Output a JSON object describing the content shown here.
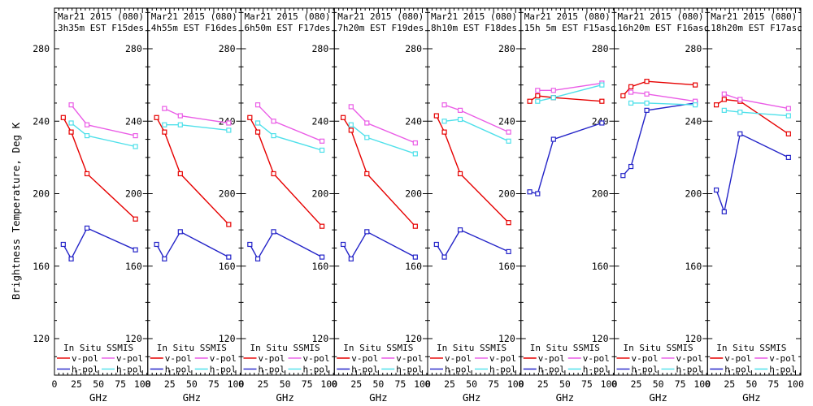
{
  "figure": {
    "y_axis_label": "Brightness Temperature, Deg K",
    "x_axis_label": "GHz",
    "y_ticks": [
      120,
      160,
      200,
      240,
      280
    ],
    "x_ticks": [
      0,
      25,
      50,
      75,
      100
    ],
    "ylim": [
      100,
      302
    ],
    "xlim": [
      0,
      106
    ],
    "colors": {
      "in_situ_v": "#e60000",
      "in_situ_h": "#2424c8",
      "ssmis_v": "#ea5ce6",
      "ssmis_h": "#4fe0ea",
      "axis": "#000000",
      "background": "#ffffff"
    },
    "legend": {
      "col1_header": "In Situ",
      "col2_header": "SSMIS",
      "vpol_label": "v-pol",
      "hpol_label": "h-pol"
    }
  },
  "chart_data": [
    {
      "type": "line",
      "title": [
        "Mar21 2015 (080)",
        "3h35m EST F15des"
      ],
      "xlabel": "GHz",
      "series": [
        {
          "name": "In Situ v-pol",
          "color_key": "in_situ_v",
          "x": [
            10,
            19,
            37,
            92
          ],
          "values": [
            242,
            234,
            211,
            186
          ]
        },
        {
          "name": "In Situ h-pol",
          "color_key": "in_situ_h",
          "x": [
            10,
            19,
            37,
            92
          ],
          "values": [
            172,
            164,
            181,
            169
          ]
        },
        {
          "name": "SSMIS v-pol",
          "color_key": "ssmis_v",
          "x": [
            19,
            37,
            92
          ],
          "values": [
            249,
            238,
            232
          ]
        },
        {
          "name": "SSMIS h-pol",
          "color_key": "ssmis_h",
          "x": [
            19,
            37,
            92
          ],
          "values": [
            239,
            232,
            226
          ]
        }
      ]
    },
    {
      "type": "line",
      "title": [
        "Mar21 2015 (080)",
        "4h55m EST F16des"
      ],
      "xlabel": "GHz",
      "series": [
        {
          "name": "In Situ v-pol",
          "color_key": "in_situ_v",
          "x": [
            10,
            19,
            37,
            92
          ],
          "values": [
            242,
            234,
            211,
            183
          ]
        },
        {
          "name": "In Situ h-pol",
          "color_key": "in_situ_h",
          "x": [
            10,
            19,
            37,
            92
          ],
          "values": [
            172,
            164,
            179,
            165
          ]
        },
        {
          "name": "SSMIS v-pol",
          "color_key": "ssmis_v",
          "x": [
            19,
            37,
            92
          ],
          "values": [
            247,
            243,
            239
          ]
        },
        {
          "name": "SSMIS h-pol",
          "color_key": "ssmis_h",
          "x": [
            19,
            37,
            92
          ],
          "values": [
            238,
            238,
            235
          ]
        }
      ]
    },
    {
      "type": "line",
      "title": [
        "Mar21 2015 (080)",
        "6h50m EST F17des"
      ],
      "xlabel": "GHz",
      "series": [
        {
          "name": "In Situ v-pol",
          "color_key": "in_situ_v",
          "x": [
            10,
            19,
            37,
            92
          ],
          "values": [
            242,
            234,
            211,
            182
          ]
        },
        {
          "name": "In Situ h-pol",
          "color_key": "in_situ_h",
          "x": [
            10,
            19,
            37,
            92
          ],
          "values": [
            172,
            164,
            179,
            165
          ]
        },
        {
          "name": "SSMIS v-pol",
          "color_key": "ssmis_v",
          "x": [
            19,
            37,
            92
          ],
          "values": [
            249,
            240,
            229
          ]
        },
        {
          "name": "SSMIS h-pol",
          "color_key": "ssmis_h",
          "x": [
            19,
            37,
            92
          ],
          "values": [
            239,
            232,
            224
          ]
        }
      ]
    },
    {
      "type": "line",
      "title": [
        "Mar21 2015 (080)",
        "7h20m EST F19des"
      ],
      "xlabel": "GHz",
      "series": [
        {
          "name": "In Situ v-pol",
          "color_key": "in_situ_v",
          "x": [
            10,
            19,
            37,
            92
          ],
          "values": [
            242,
            235,
            211,
            182
          ]
        },
        {
          "name": "In Situ h-pol",
          "color_key": "in_situ_h",
          "x": [
            10,
            19,
            37,
            92
          ],
          "values": [
            172,
            164,
            179,
            165
          ]
        },
        {
          "name": "SSMIS v-pol",
          "color_key": "ssmis_v",
          "x": [
            19,
            37,
            92
          ],
          "values": [
            248,
            239,
            228
          ]
        },
        {
          "name": "SSMIS h-pol",
          "color_key": "ssmis_h",
          "x": [
            19,
            37,
            92
          ],
          "values": [
            238,
            231,
            222
          ]
        }
      ]
    },
    {
      "type": "line",
      "title": [
        "Mar21 2015 (080)",
        "8h10m EST F18des"
      ],
      "xlabel": "GHz",
      "series": [
        {
          "name": "In Situ v-pol",
          "color_key": "in_situ_v",
          "x": [
            10,
            19,
            37,
            92
          ],
          "values": [
            243,
            234,
            211,
            184
          ]
        },
        {
          "name": "In Situ h-pol",
          "color_key": "in_situ_h",
          "x": [
            10,
            19,
            37,
            92
          ],
          "values": [
            172,
            165,
            180,
            168
          ]
        },
        {
          "name": "SSMIS v-pol",
          "color_key": "ssmis_v",
          "x": [
            19,
            37,
            92
          ],
          "values": [
            249,
            246,
            234
          ]
        },
        {
          "name": "SSMIS h-pol",
          "color_key": "ssmis_h",
          "x": [
            19,
            37,
            92
          ],
          "values": [
            240,
            241,
            229
          ]
        }
      ]
    },
    {
      "type": "line",
      "title": [
        "Mar21 2015 (080)",
        "15h 5m EST F15asc"
      ],
      "xlabel": "GHz",
      "series": [
        {
          "name": "In Situ v-pol",
          "color_key": "in_situ_v",
          "x": [
            10,
            19,
            37,
            92
          ],
          "values": [
            251,
            254,
            253,
            251
          ]
        },
        {
          "name": "In Situ h-pol",
          "color_key": "in_situ_h",
          "x": [
            10,
            19,
            37,
            92
          ],
          "values": [
            201,
            200,
            230,
            239
          ]
        },
        {
          "name": "SSMIS v-pol",
          "color_key": "ssmis_v",
          "x": [
            19,
            37,
            92
          ],
          "values": [
            257,
            257,
            261
          ]
        },
        {
          "name": "SSMIS h-pol",
          "color_key": "ssmis_h",
          "x": [
            19,
            37,
            92
          ],
          "values": [
            251,
            253,
            260
          ]
        }
      ]
    },
    {
      "type": "line",
      "title": [
        "Mar21 2015 (080)",
        "16h20m EST F16asc"
      ],
      "xlabel": "GHz",
      "series": [
        {
          "name": "In Situ v-pol",
          "color_key": "in_situ_v",
          "x": [
            10,
            19,
            37,
            92
          ],
          "values": [
            254,
            259,
            262,
            260
          ]
        },
        {
          "name": "In Situ h-pol",
          "color_key": "in_situ_h",
          "x": [
            10,
            19,
            37,
            92
          ],
          "values": [
            210,
            215,
            246,
            250
          ]
        },
        {
          "name": "SSMIS v-pol",
          "color_key": "ssmis_v",
          "x": [
            19,
            37,
            92
          ],
          "values": [
            256,
            255,
            251
          ]
        },
        {
          "name": "SSMIS h-pol",
          "color_key": "ssmis_h",
          "x": [
            19,
            37,
            92
          ],
          "values": [
            250,
            250,
            249
          ]
        }
      ]
    },
    {
      "type": "line",
      "title": [
        "Mar21 2015 (080)",
        "18h20m EST F17asc"
      ],
      "xlabel": "GHz",
      "series": [
        {
          "name": "In Situ v-pol",
          "color_key": "in_situ_v",
          "x": [
            10,
            19,
            37,
            92
          ],
          "values": [
            249,
            252,
            251,
            233
          ]
        },
        {
          "name": "In Situ h-pol",
          "color_key": "in_situ_h",
          "x": [
            10,
            19,
            37,
            92
          ],
          "values": [
            202,
            190,
            233,
            220
          ]
        },
        {
          "name": "SSMIS v-pol",
          "color_key": "ssmis_v",
          "x": [
            19,
            37,
            92
          ],
          "values": [
            255,
            252,
            247
          ]
        },
        {
          "name": "SSMIS h-pol",
          "color_key": "ssmis_h",
          "x": [
            19,
            37,
            92
          ],
          "values": [
            246,
            245,
            243
          ]
        }
      ]
    }
  ]
}
